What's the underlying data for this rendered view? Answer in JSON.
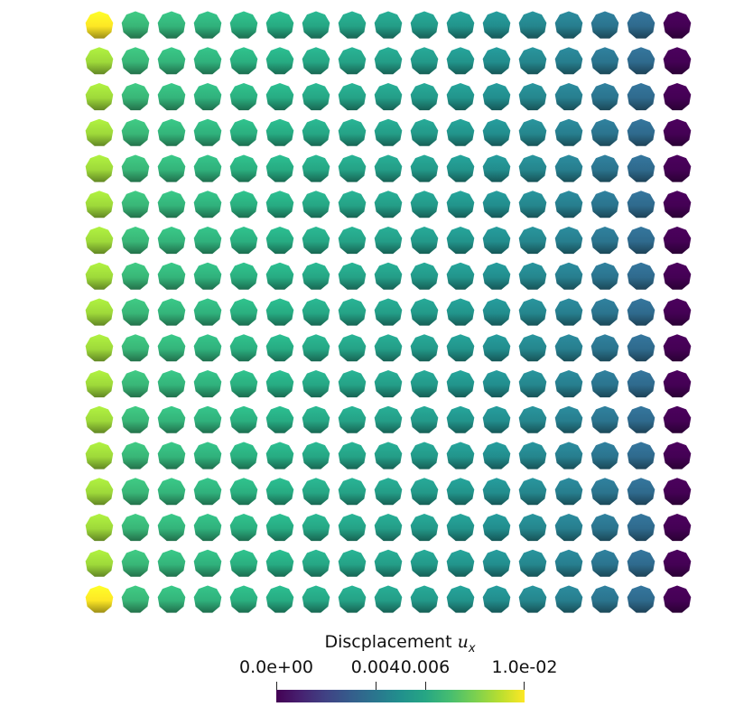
{
  "grid": {
    "rows": 17,
    "cols": 17
  },
  "colormap": "viridis",
  "column_values_ux": [
    0.01,
    0.0067,
    0.0066,
    0.0065,
    0.0064,
    0.0062,
    0.006,
    0.0058,
    0.0056,
    0.0054,
    0.0052,
    0.0049,
    0.0046,
    0.0043,
    0.0039,
    0.0035,
    0.0
  ],
  "corner_value_ux": 0.01,
  "edge_column0_value_ux": 0.0086,
  "legend": {
    "title_text": "Discplacement ",
    "title_symbol": "u",
    "title_subscript": "x",
    "range": [
      0.0,
      0.01
    ],
    "ticks": [
      {
        "value": 0.0,
        "label": "0.0e+00"
      },
      {
        "value": 0.004,
        "label": "0.004"
      },
      {
        "value": 0.006,
        "label": "0.006"
      },
      {
        "value": 0.01,
        "label": "1.0e-02"
      }
    ]
  }
}
